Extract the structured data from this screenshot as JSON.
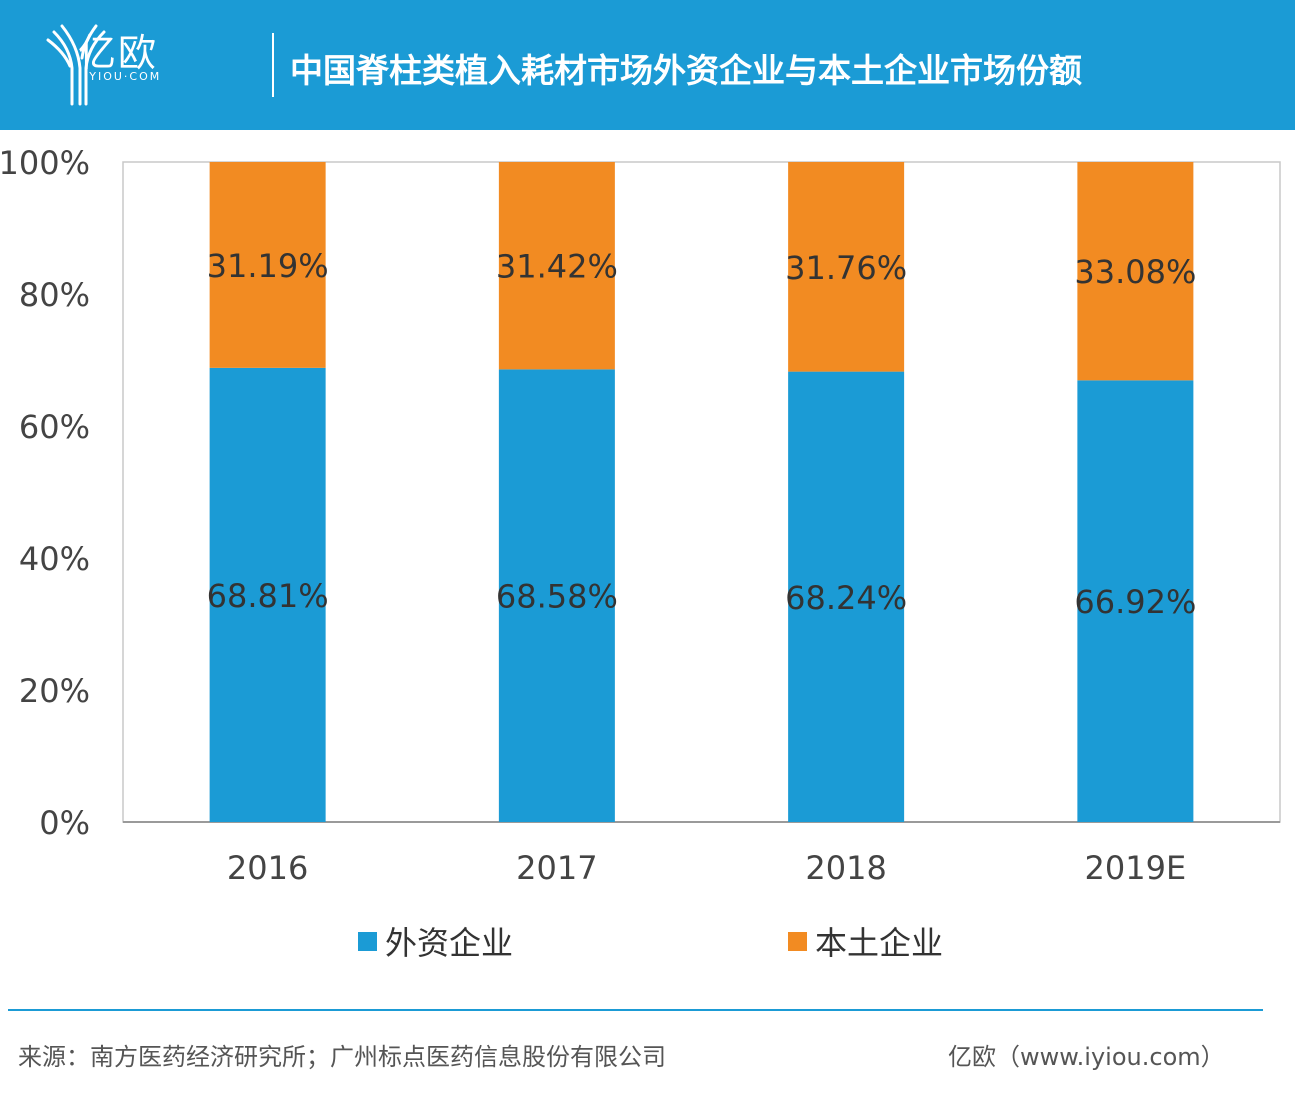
{
  "header": {
    "logo_cn": "亿欧",
    "logo_en": "IYIOU·COM",
    "title": "中国脊柱类植入耗材市场外资企业与本土企业市场份额"
  },
  "colors": {
    "header": "#1b9bd5",
    "foreign": "#1b9bd5",
    "domestic": "#f28b22"
  },
  "chart_data": {
    "type": "bar",
    "stacked": true,
    "categories": [
      "2016",
      "2017",
      "2018",
      "2019E"
    ],
    "series": [
      {
        "name": "外资企业",
        "values": [
          68.81,
          68.58,
          68.24,
          66.92
        ],
        "labels": [
          "68.81%",
          "68.58%",
          "68.24%",
          "66.92%"
        ]
      },
      {
        "name": "本土企业",
        "values": [
          31.19,
          31.42,
          31.76,
          33.08
        ],
        "labels": [
          "31.19%",
          "31.42%",
          "31.76%",
          "33.08%"
        ]
      }
    ],
    "yticks": [
      "0%",
      "20%",
      "40%",
      "60%",
      "80%",
      "100%"
    ],
    "ylim": [
      0,
      100
    ],
    "grid": false,
    "legend": "bottom"
  },
  "footer": {
    "source": "来源：南方医药经济研究所；广州标点医药信息股份有限公司",
    "credit": "亿欧（www.iyiou.com）"
  }
}
